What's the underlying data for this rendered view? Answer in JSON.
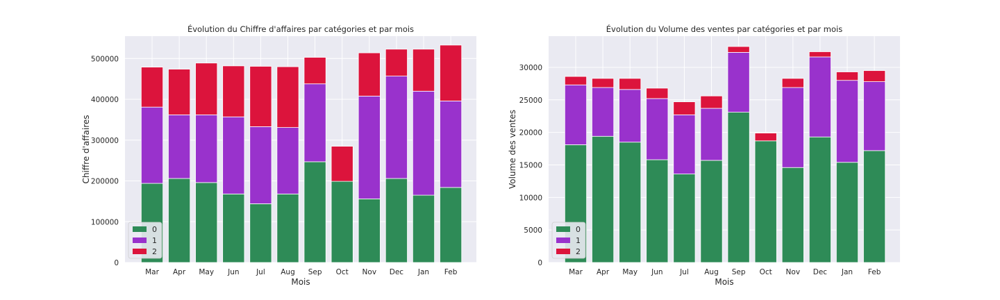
{
  "colors": {
    "0": "#2e8b57",
    "1": "#9932cc",
    "2": "#dc143c",
    "panel_bg": "#eaeaf2",
    "grid": "#ffffff",
    "text": "#262626"
  },
  "chart_data": [
    {
      "type": "bar",
      "stacked": true,
      "title": "Évolution du Chiffre d'affaires par catégories et par mois",
      "xlabel": "Mois",
      "ylabel": "Chiffre d'affaires",
      "ylim": [
        0,
        555000
      ],
      "yticks": [
        0,
        100000,
        200000,
        300000,
        400000,
        500000
      ],
      "grid": true,
      "legend_position": "bottom-left",
      "categories": [
        "Mar",
        "Apr",
        "May",
        "Jun",
        "Jul",
        "Aug",
        "Sep",
        "Oct",
        "Nov",
        "Dec",
        "Jan",
        "Feb"
      ],
      "series": [
        {
          "name": "0",
          "values": [
            194000,
            206000,
            196000,
            168000,
            144000,
            168000,
            247000,
            199000,
            156000,
            206000,
            165000,
            184000
          ]
        },
        {
          "name": "1",
          "values": [
            187000,
            156000,
            166000,
            189000,
            189000,
            163000,
            191000,
            0,
            252000,
            251000,
            255000,
            212000
          ]
        },
        {
          "name": "2",
          "values": [
            98000,
            112000,
            127000,
            125000,
            148000,
            149000,
            65000,
            86000,
            106000,
            66000,
            103000,
            137000
          ]
        }
      ]
    },
    {
      "type": "bar",
      "stacked": true,
      "title": "Évolution du Volume des ventes par catégories et par mois",
      "xlabel": "Mois",
      "ylabel": "Volume des ventes",
      "ylim": [
        0,
        34800
      ],
      "yticks": [
        0,
        5000,
        10000,
        15000,
        20000,
        25000,
        30000
      ],
      "grid": true,
      "legend_position": "bottom-left",
      "categories": [
        "Mar",
        "Apr",
        "May",
        "Jun",
        "Jul",
        "Aug",
        "Sep",
        "Oct",
        "Nov",
        "Dec",
        "Jan",
        "Feb"
      ],
      "series": [
        {
          "name": "0",
          "values": [
            18100,
            19400,
            18500,
            15800,
            13600,
            15700,
            23100,
            18700,
            14600,
            19300,
            15400,
            17200
          ]
        },
        {
          "name": "1",
          "values": [
            9200,
            7500,
            8100,
            9400,
            9100,
            8000,
            9200,
            0,
            12300,
            12300,
            12600,
            10600
          ]
        },
        {
          "name": "2",
          "values": [
            1300,
            1400,
            1700,
            1600,
            2000,
            1900,
            900,
            1200,
            1400,
            800,
            1300,
            1700
          ]
        }
      ]
    }
  ]
}
